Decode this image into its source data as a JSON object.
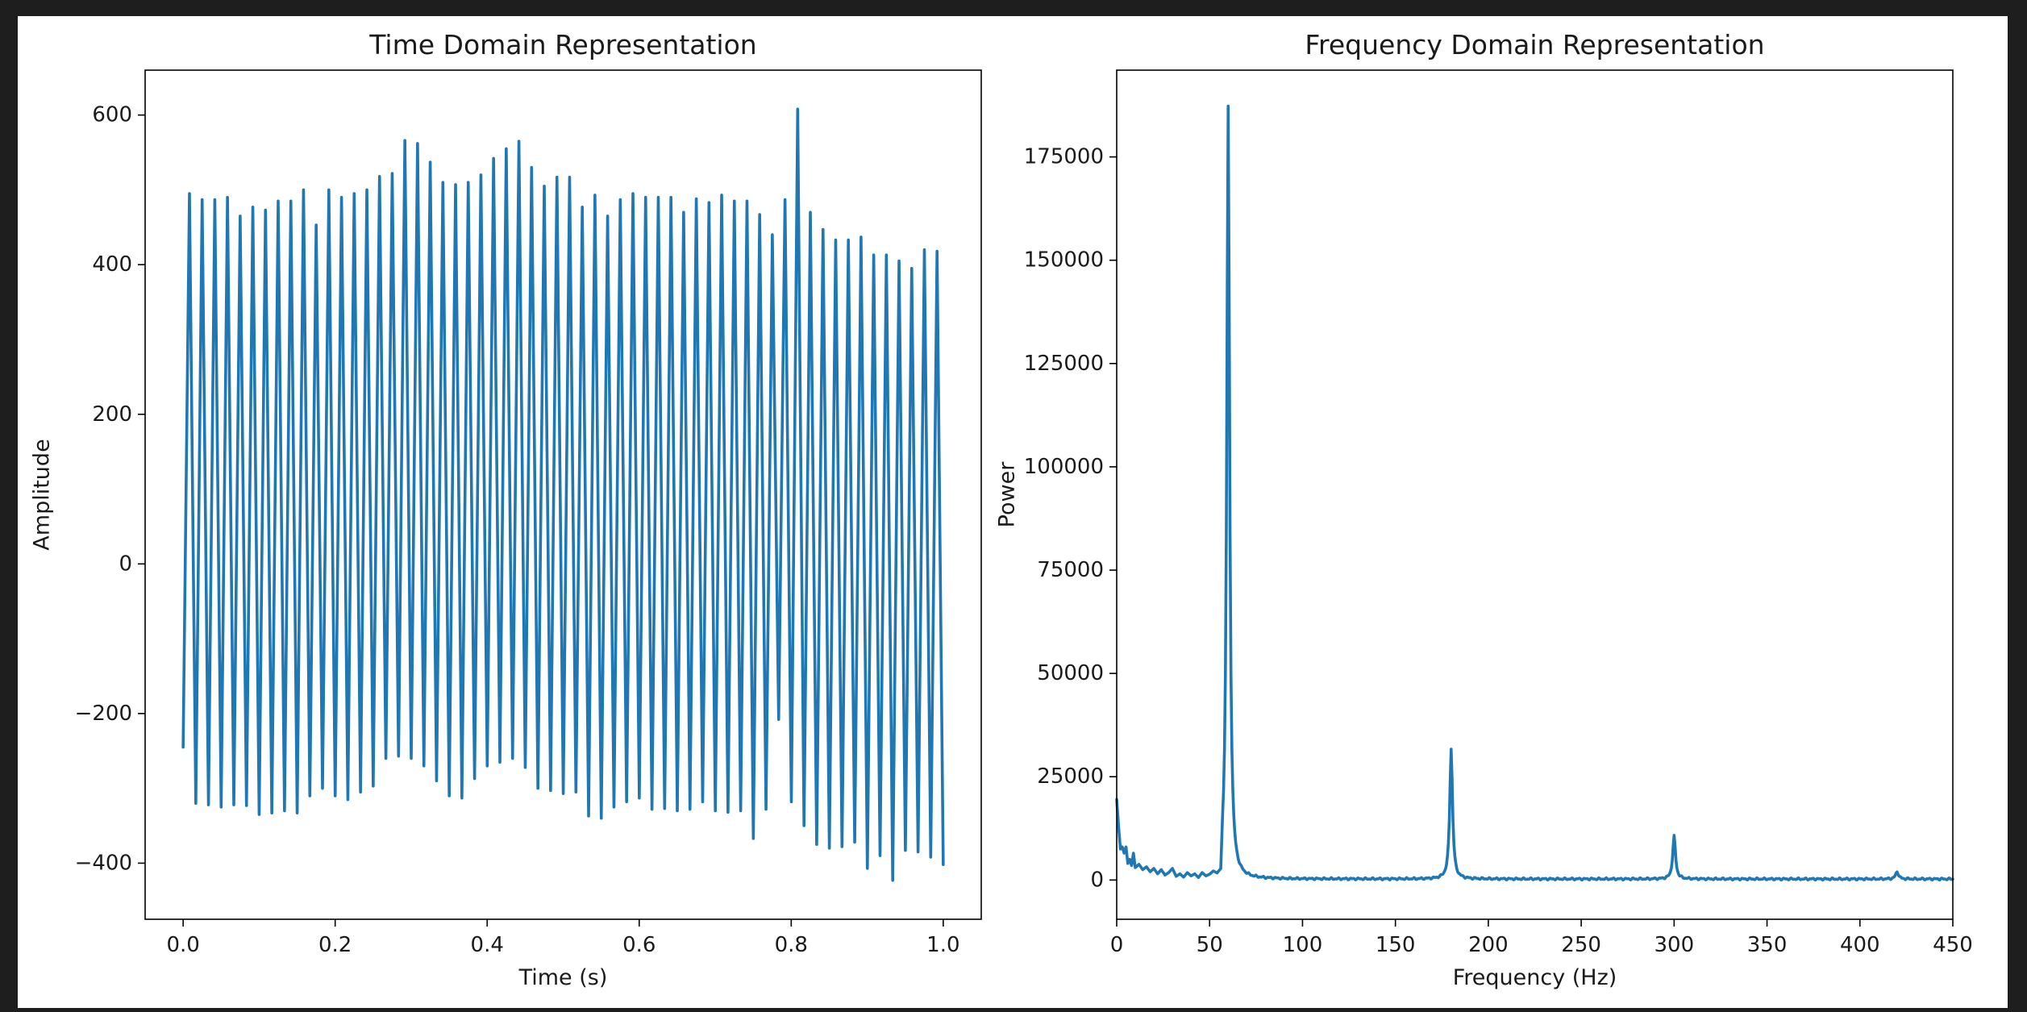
{
  "chart_data": [
    {
      "type": "line",
      "title": "Time Domain Representation",
      "xlabel": "Time (s)",
      "ylabel": "Amplitude",
      "xlim": [
        -0.05,
        1.05
      ],
      "ylim": [
        -475,
        660
      ],
      "xticks": [
        0.0,
        0.2,
        0.4,
        0.6,
        0.8,
        1.0
      ],
      "xtick_labels": [
        "0.0",
        "0.2",
        "0.4",
        "0.6",
        "0.8",
        "1.0"
      ],
      "yticks": [
        -400,
        -200,
        0,
        200,
        400,
        600
      ],
      "ytick_labels": [
        "−400",
        "−200",
        "0",
        "200",
        "400",
        "600"
      ],
      "grid": false,
      "color": "#1f77b4",
      "series": [
        {
          "x_start": 0.0,
          "x_end": 1.0,
          "period": 0.01667,
          "start_value": -245,
          "peaks": [
            495,
            487,
            487,
            490,
            465,
            477,
            473,
            485,
            485,
            500,
            453,
            500,
            490,
            495,
            500,
            518,
            522,
            566,
            562,
            537,
            510,
            507,
            510,
            520,
            542,
            555,
            565,
            530,
            505,
            517,
            517,
            477,
            493,
            465,
            487,
            495,
            490,
            490,
            490,
            470,
            488,
            483,
            493,
            485,
            485,
            467,
            440,
            487,
            608,
            470,
            447,
            433,
            433,
            437,
            413,
            413,
            405,
            395,
            420,
            418
          ],
          "troughs": [
            -320,
            -322,
            -325,
            -322,
            -323,
            -335,
            -333,
            -330,
            -333,
            -310,
            -300,
            -310,
            -315,
            -305,
            -297,
            -260,
            -257,
            -260,
            -270,
            -290,
            -310,
            -313,
            -287,
            -270,
            -265,
            -260,
            -272,
            -300,
            -303,
            -307,
            -305,
            -337,
            -340,
            -325,
            -318,
            -313,
            -328,
            -327,
            -330,
            -328,
            -318,
            -330,
            -332,
            -330,
            -367,
            -328,
            -208,
            -318,
            -350,
            -375,
            -380,
            -378,
            -372,
            -407,
            -390,
            -423,
            -383,
            -385,
            -392
          ]
        }
      ]
    },
    {
      "type": "line",
      "title": "Frequency Domain Representation",
      "xlabel": "Frequency (Hz)",
      "ylabel": "Power",
      "xlim": [
        0,
        450
      ],
      "ylim": [
        -9500,
        196000
      ],
      "xticks": [
        0,
        50,
        100,
        150,
        200,
        250,
        300,
        350,
        400,
        450
      ],
      "xtick_labels": [
        "0",
        "50",
        "100",
        "150",
        "200",
        "250",
        "300",
        "350",
        "400",
        "450"
      ],
      "yticks": [
        0,
        25000,
        50000,
        75000,
        100000,
        125000,
        150000,
        175000
      ],
      "ytick_labels": [
        "0",
        "25000",
        "50000",
        "75000",
        "100000",
        "125000",
        "150000",
        "175000"
      ],
      "grid": false,
      "color": "#1f77b4",
      "series": [
        {
          "peaks": [
            {
              "x": 0,
              "y": 19500
            },
            {
              "x": 60,
              "y": 187000
            },
            {
              "x": 180,
              "y": 31500
            },
            {
              "x": 300,
              "y": 10300
            },
            {
              "x": 420,
              "y": 1800
            }
          ],
          "low_frequency_noise": [
            {
              "x": 1,
              "y": 13000
            },
            {
              "x": 2,
              "y": 7500
            },
            {
              "x": 3,
              "y": 8000
            },
            {
              "x": 4,
              "y": 6500
            },
            {
              "x": 5,
              "y": 8000
            },
            {
              "x": 6,
              "y": 4000
            },
            {
              "x": 7,
              "y": 5000
            },
            {
              "x": 8,
              "y": 3500
            },
            {
              "x": 9,
              "y": 6500
            },
            {
              "x": 10,
              "y": 3000
            },
            {
              "x": 12,
              "y": 3800
            },
            {
              "x": 14,
              "y": 2500
            },
            {
              "x": 16,
              "y": 3200
            },
            {
              "x": 18,
              "y": 2000
            },
            {
              "x": 20,
              "y": 2800
            },
            {
              "x": 22,
              "y": 1500
            },
            {
              "x": 24,
              "y": 2500
            },
            {
              "x": 26,
              "y": 1200
            },
            {
              "x": 28,
              "y": 1800
            },
            {
              "x": 30,
              "y": 2800
            },
            {
              "x": 32,
              "y": 900
            },
            {
              "x": 34,
              "y": 1500
            },
            {
              "x": 36,
              "y": 700
            },
            {
              "x": 38,
              "y": 1800
            },
            {
              "x": 40,
              "y": 1000
            },
            {
              "x": 42,
              "y": 1500
            },
            {
              "x": 44,
              "y": 600
            },
            {
              "x": 46,
              "y": 1800
            },
            {
              "x": 48,
              "y": 1000
            },
            {
              "x": 50,
              "y": 1400
            },
            {
              "x": 52,
              "y": 2200
            },
            {
              "x": 54,
              "y": 1700
            },
            {
              "x": 56,
              "y": 2800
            }
          ],
          "baseline": 250
        }
      ]
    }
  ]
}
